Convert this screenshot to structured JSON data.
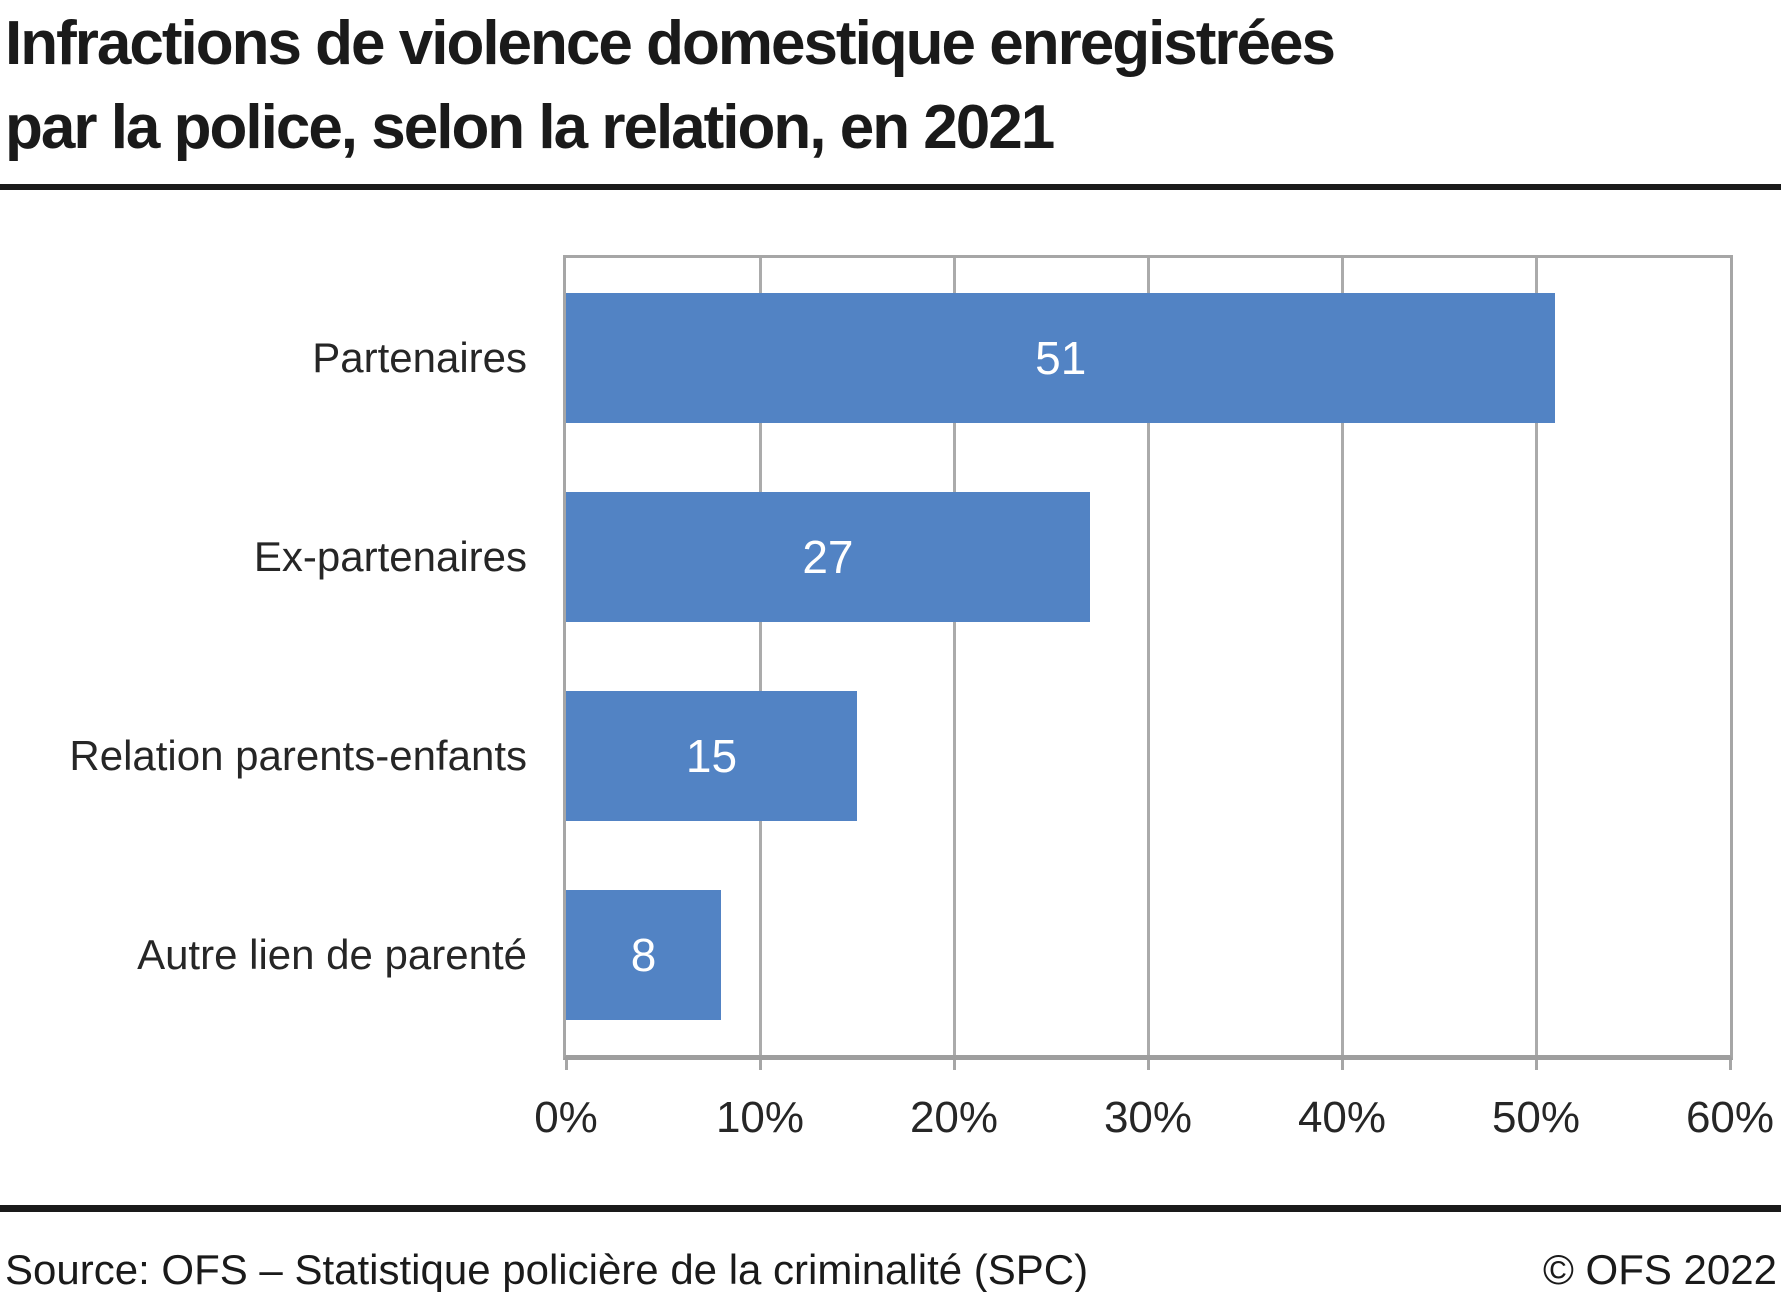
{
  "header": {
    "title_line1": "Infractions de violence domestique enregistrées",
    "title_line2": "par la police, selon la relation, en 2021"
  },
  "chart_data": {
    "type": "bar",
    "orientation": "horizontal",
    "title": "Infractions de violence domestique enregistrées par la police, selon la relation, en 2021",
    "categories": [
      "Partenaires",
      "Ex-partenaires",
      "Relation parents-enfants",
      "Autre lien de parenté"
    ],
    "values": [
      51,
      27,
      15,
      8
    ],
    "value_labels": [
      "51",
      "27",
      "15",
      "8"
    ],
    "unit": "%",
    "xlim": [
      0,
      60
    ],
    "x_tick_step": 10,
    "x_tick_labels": [
      "0%",
      "10%",
      "20%",
      "30%",
      "40%",
      "50%",
      "60%"
    ],
    "grid": true,
    "legend": "none",
    "colors": {
      "bar": "#5283c4",
      "bar_label": "#ffffff",
      "gridline": "#ababab",
      "plot_border": "#a6a6a6",
      "text": "#262626"
    }
  },
  "footer": {
    "source": "Source: OFS – Statistique policière de la criminalité (SPC)",
    "copyright": "© OFS 2022"
  }
}
